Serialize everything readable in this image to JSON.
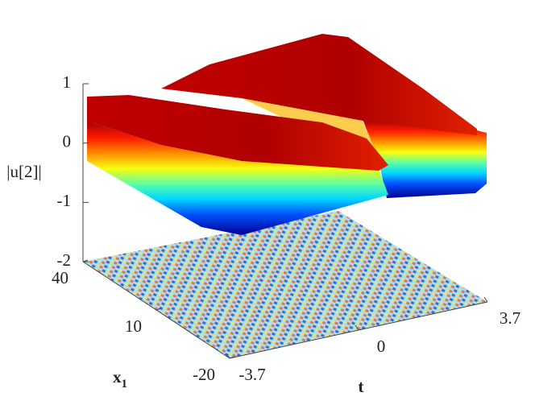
{
  "chart_data": {
    "type": "surface3d",
    "zlabel": "|u[2]|",
    "xlabel": {
      "base": "x",
      "sub": "1"
    },
    "ylabel": "t",
    "zlim": [
      -2,
      1
    ],
    "zticks": [
      1,
      0,
      -1,
      -2
    ],
    "xlim": [
      -20,
      40
    ],
    "xticks": [
      40,
      10,
      -20
    ],
    "ylim": [
      -3.7,
      3.7
    ],
    "yticks": [
      -3.7,
      0,
      3.7
    ],
    "colormap": "jet"
  }
}
